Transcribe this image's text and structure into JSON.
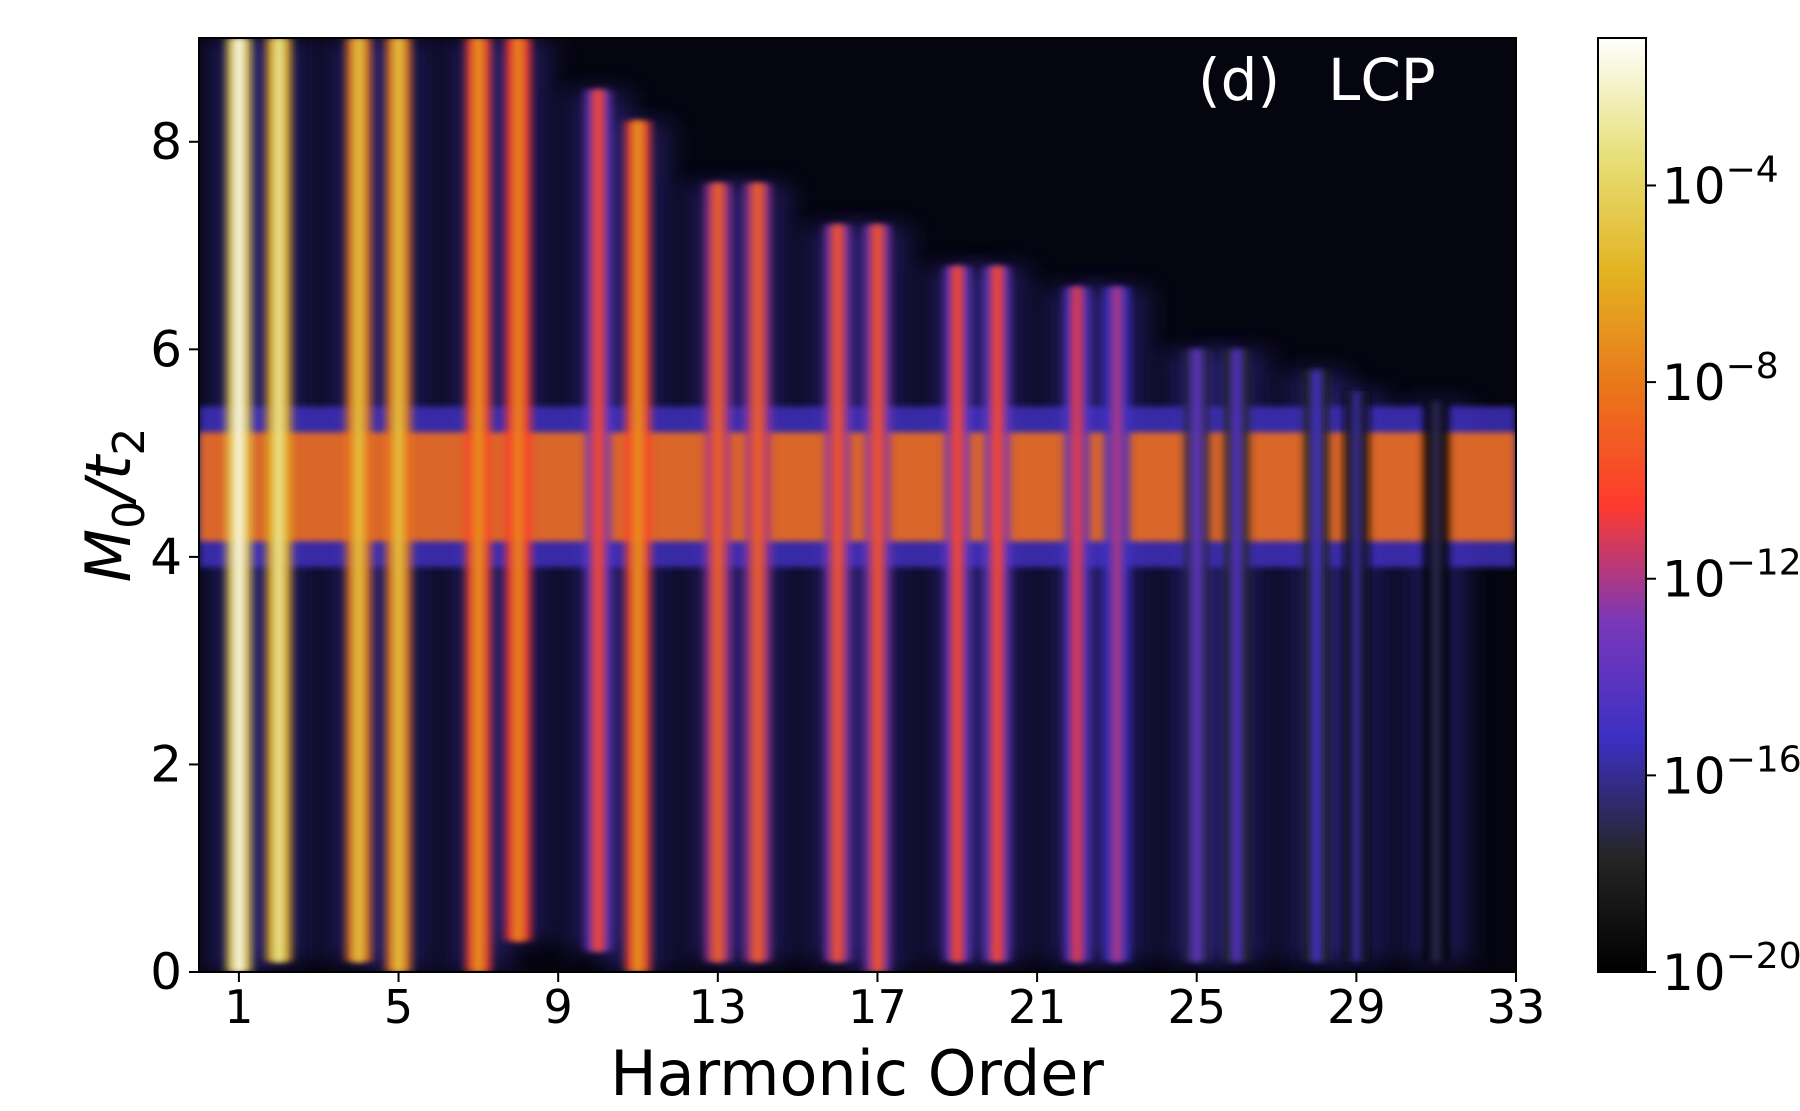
{
  "chart_data": {
    "type": "heatmap",
    "panel_label": "(d)",
    "annotation": "LCP",
    "xlabel": "Harmonic Order",
    "ylabel": "M_0/t_2",
    "xlim": [
      0,
      33
    ],
    "ylim": [
      0,
      9
    ],
    "x_ticks": [
      1,
      5,
      9,
      13,
      17,
      21,
      25,
      29,
      33
    ],
    "y_ticks": [
      0,
      2,
      4,
      6,
      8
    ],
    "colorbar": {
      "scale": "log",
      "range": [
        1e-20,
        0.1
      ],
      "colormap": "CMRmap-like",
      "ticks": [
        {
          "base": "10",
          "exp": "−20",
          "value": 1e-20
        },
        {
          "base": "10",
          "exp": "−16",
          "value": 1e-16
        },
        {
          "base": "10",
          "exp": "−12",
          "value": 1e-12
        },
        {
          "base": "10",
          "exp": "−8",
          "value": 1e-08
        },
        {
          "base": "10",
          "exp": "−4",
          "value": 0.0001
        }
      ]
    },
    "harmonic_peaks": [
      {
        "order": 1,
        "y_extent": [
          0,
          9
        ],
        "peak_log10": -1.5
      },
      {
        "order": 2,
        "y_extent": [
          0.1,
          9
        ],
        "peak_log10": -3
      },
      {
        "order": 4,
        "y_extent": [
          0.1,
          9
        ],
        "peak_log10": -5
      },
      {
        "order": 5,
        "y_extent": [
          0,
          9
        ],
        "peak_log10": -5
      },
      {
        "order": 7,
        "y_extent": [
          0,
          9
        ],
        "peak_log10": -7
      },
      {
        "order": 8,
        "y_extent": [
          0.3,
          9
        ],
        "peak_log10": -7.5
      },
      {
        "order": 10,
        "y_extent": [
          0.2,
          8.5
        ],
        "peak_log10": -10
      },
      {
        "order": 11,
        "y_extent": [
          0,
          8.2
        ],
        "peak_log10": -7
      },
      {
        "order": 13,
        "y_extent": [
          0.1,
          7.6
        ],
        "peak_log10": -9
      },
      {
        "order": 14,
        "y_extent": [
          0.1,
          7.6
        ],
        "peak_log10": -9
      },
      {
        "order": 16,
        "y_extent": [
          0.1,
          7.2
        ],
        "peak_log10": -9.5
      },
      {
        "order": 17,
        "y_extent": [
          0,
          7.2
        ],
        "peak_log10": -9.5
      },
      {
        "order": 19,
        "y_extent": [
          0.1,
          6.8
        ],
        "peak_log10": -10
      },
      {
        "order": 20,
        "y_extent": [
          0.1,
          6.8
        ],
        "peak_log10": -10
      },
      {
        "order": 22,
        "y_extent": [
          0.1,
          6.6
        ],
        "peak_log10": -11
      },
      {
        "order": 23,
        "y_extent": [
          0.1,
          6.6
        ],
        "peak_log10": -12
      },
      {
        "order": 25,
        "y_extent": [
          0.1,
          6.0
        ],
        "peak_log10": -14
      },
      {
        "order": 26,
        "y_extent": [
          0.1,
          6.0
        ],
        "peak_log10": -14.5
      },
      {
        "order": 28,
        "y_extent": [
          0.1,
          5.8
        ],
        "peak_log10": -15
      },
      {
        "order": 29,
        "y_extent": [
          0.1,
          5.6
        ],
        "peak_log10": -16
      },
      {
        "order": 31,
        "y_extent": [
          0.1,
          5.5
        ],
        "peak_log10": -17
      }
    ],
    "band": {
      "y_range": [
        4.15,
        5.2
      ],
      "x_range": [
        0,
        33
      ],
      "peak_log10": -8.5
    }
  }
}
